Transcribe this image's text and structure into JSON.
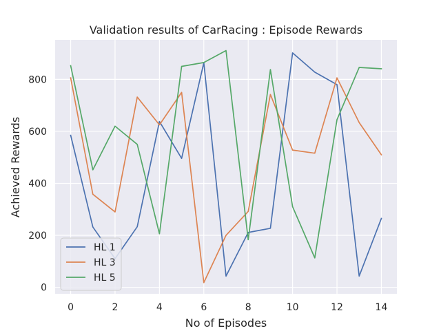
{
  "chart_data": {
    "type": "line",
    "title": "Validation results of CarRacing : Episode Rewards",
    "xlabel": "No of Episodes",
    "ylabel": "Achieved Rewards",
    "xlim": [
      -0.7,
      14.7
    ],
    "ylim": [
      -25,
      952
    ],
    "xticks": [
      0,
      2,
      4,
      6,
      8,
      10,
      12,
      14
    ],
    "yticks": [
      0,
      200,
      400,
      600,
      800
    ],
    "grid": true,
    "legend_position": "lower-left",
    "x": [
      0,
      1,
      2,
      3,
      4,
      5,
      6,
      7,
      8,
      9,
      10,
      11,
      12,
      13,
      14
    ],
    "series": [
      {
        "name": "HL 1",
        "color": "#4c72b0",
        "values": [
          585,
          232,
          110,
          233,
          638,
          496,
          864,
          43,
          211,
          227,
          902,
          828,
          780,
          43,
          265
        ]
      },
      {
        "name": "HL 3",
        "color": "#dd8452",
        "values": [
          806,
          358,
          290,
          732,
          625,
          750,
          18,
          200,
          292,
          742,
          528,
          516,
          806,
          634,
          510
        ]
      },
      {
        "name": "HL 5",
        "color": "#55a868",
        "values": [
          853,
          452,
          620,
          550,
          206,
          850,
          865,
          911,
          183,
          838,
          310,
          113,
          645,
          846,
          841
        ]
      }
    ]
  }
}
